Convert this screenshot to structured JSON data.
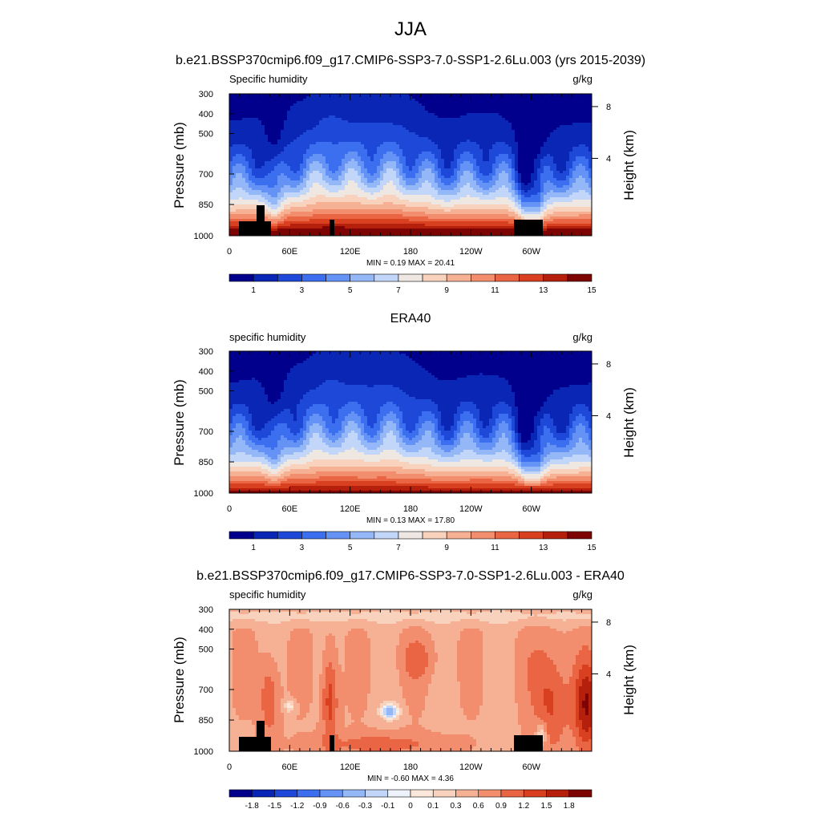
{
  "page": {
    "season": "JJA",
    "subtitle": "b.e21.BSSP370cmip6.f09_g17.CMIP6-SSP3-7.0-SSP1-2.6Lu.003 (yrs 2015-2039)"
  },
  "colors": {
    "seq_scale": [
      "#00008c",
      "#0a26b4",
      "#1e48d8",
      "#3c6ef0",
      "#6493f5",
      "#94b7f7",
      "#c2d6f9",
      "#efe7e2",
      "#f8d2bd",
      "#f6b195",
      "#f28e6e",
      "#ea6543",
      "#d8401f",
      "#b4200c",
      "#7e0404"
    ],
    "diff_scale": [
      "#00008c",
      "#0a26b4",
      "#1e48d8",
      "#3c6ef0",
      "#6493f5",
      "#94b7f7",
      "#c2d6f9",
      "#eef2fa",
      "#fbe8da",
      "#f8d2bd",
      "#f6b195",
      "#f28e6e",
      "#ea6543",
      "#d8401f",
      "#b4200c",
      "#7e0404"
    ]
  },
  "chart_data": [
    {
      "type": "heatmap",
      "title": "",
      "left_label": "Specific humidity",
      "units": "g/kg",
      "ylabel": "Pressure (mb)",
      "ylabel_right": "Height (km)",
      "x_ticks": [
        "0",
        "60E",
        "120E",
        "180",
        "120W",
        "60W"
      ],
      "x_range": [
        0,
        360
      ],
      "y_ticks": [
        "300",
        "400",
        "500",
        "700",
        "850",
        "1000"
      ],
      "y_ticks_right": [
        "8",
        "4"
      ],
      "stats": "MIN =   0.19  MAX =  20.41",
      "colorbar_labels": [
        "1",
        "3",
        "5",
        "7",
        "9",
        "11",
        "13",
        "15"
      ],
      "field": "model",
      "show_land": true
    },
    {
      "type": "heatmap",
      "title": "ERA40",
      "left_label": "specific humidity",
      "units": "g/kg",
      "ylabel": "Pressure (mb)",
      "ylabel_right": "Height (km)",
      "x_ticks": [
        "0",
        "60E",
        "120E",
        "180",
        "120W",
        "60W"
      ],
      "x_range": [
        0,
        360
      ],
      "y_ticks": [
        "300",
        "400",
        "500",
        "700",
        "850",
        "1000"
      ],
      "y_ticks_right": [
        "8",
        "4"
      ],
      "stats": "MIN =   0.13  MAX =  17.80",
      "colorbar_labels": [
        "1",
        "3",
        "5",
        "7",
        "9",
        "11",
        "13",
        "15"
      ],
      "field": "obs",
      "show_land": false
    },
    {
      "type": "heatmap",
      "title": "b.e21.BSSP370cmip6.f09_g17.CMIP6-SSP3-7.0-SSP1-2.6Lu.003 - ERA40",
      "left_label": "specific humidity",
      "units": "g/kg",
      "ylabel": "Pressure (mb)",
      "ylabel_right": "Height (km)",
      "x_ticks": [
        "0",
        "60E",
        "120E",
        "180",
        "120W",
        "60W"
      ],
      "x_range": [
        0,
        360
      ],
      "y_ticks": [
        "300",
        "400",
        "500",
        "700",
        "850",
        "1000"
      ],
      "y_ticks_right": [
        "8",
        "4"
      ],
      "stats": "MIN =  -0.60  MAX =   4.36",
      "colorbar_labels": [
        "-1.8",
        "-1.5",
        "-1.2",
        "-0.9",
        "-0.6",
        "-0.3",
        "-0.1",
        "0",
        "0.1",
        "0.3",
        "0.6",
        "0.9",
        "1.2",
        "1.5",
        "1.8"
      ],
      "field": "diff",
      "show_land": true
    }
  ]
}
